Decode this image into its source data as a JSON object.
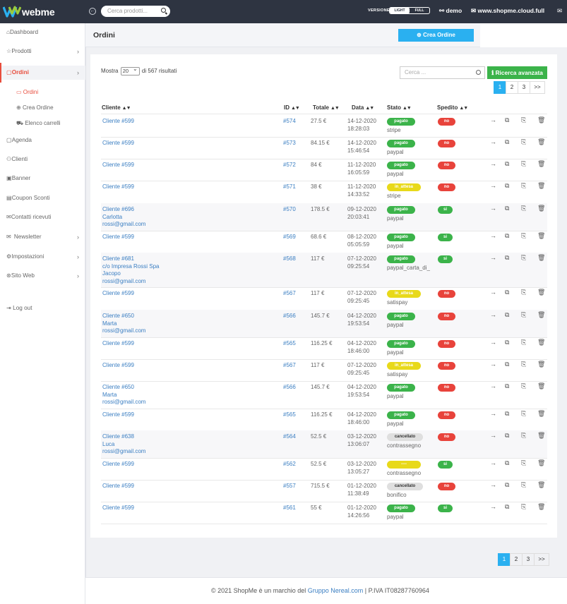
{
  "topbar": {
    "logo_text": "webme",
    "search_placeholder": "Cerca prodotti...",
    "versione_label": "VERSIONE",
    "toggle_light": "LIGHT",
    "toggle_full": "FULL",
    "user": "demo",
    "site": "www.shopme.cloud.full"
  },
  "sidebar": {
    "items": [
      {
        "label": "Dashboard"
      },
      {
        "label": "Prodotti"
      },
      {
        "label": "Ordini"
      },
      {
        "label": "Agenda"
      },
      {
        "label": "Clienti"
      },
      {
        "label": "Banner"
      },
      {
        "label": "Coupon Sconti"
      },
      {
        "label": "Contatti ricevuti"
      },
      {
        "label": "Newsletter"
      },
      {
        "label": "Impostazioni"
      },
      {
        "label": "Sito Web"
      },
      {
        "label": "Log out"
      }
    ],
    "sub": [
      {
        "label": "Ordini"
      },
      {
        "label": "Crea Ordine"
      },
      {
        "label": "Elenco carrelli"
      }
    ]
  },
  "page": {
    "title": "Ordini",
    "crea_button": "Crea Ordine",
    "mostra_label": "Mostra",
    "mostra_value": "20",
    "results_label": "di 567 risultati",
    "search_placeholder": "Cerca ...",
    "ricerca_button": "Ricerca avanzata",
    "pages": [
      "1",
      "2",
      "3",
      ">>"
    ]
  },
  "table": {
    "headers": [
      "Cliente",
      "ID",
      "Totale",
      "Data",
      "Stato",
      "Spedito"
    ],
    "rows": [
      {
        "cliente": [
          "Cliente #599"
        ],
        "id": "#574",
        "totale": "27.5 €",
        "date": "14-12-2020",
        "time": "18:28:03",
        "stato": "pagato",
        "pay": "stripe",
        "spedito": "no"
      },
      {
        "cliente": [
          "Cliente #599"
        ],
        "id": "#573",
        "totale": "84.15 €",
        "date": "14-12-2020",
        "time": "15:46:54",
        "stato": "pagato",
        "pay": "paypal",
        "spedito": "no"
      },
      {
        "cliente": [
          "Cliente #599"
        ],
        "id": "#572",
        "totale": "84 €",
        "date": "11-12-2020",
        "time": "16:05:59",
        "stato": "pagato",
        "pay": "paypal",
        "spedito": "no"
      },
      {
        "cliente": [
          "Cliente #599"
        ],
        "id": "#571",
        "totale": "38 €",
        "date": "11-12-2020",
        "time": "14:33:52",
        "stato": "in_attesa",
        "pay": "stripe",
        "spedito": "no"
      },
      {
        "cliente": [
          "Cliente #696",
          "Carlotta",
          "rossi@gmail.com"
        ],
        "id": "#570",
        "totale": "178.5 €",
        "date": "09-12-2020",
        "time": "20:03:41",
        "stato": "pagato",
        "pay": "paypal",
        "spedito": "si"
      },
      {
        "cliente": [
          "Cliente #599"
        ],
        "id": "#569",
        "totale": "68.6 €",
        "date": "08-12-2020",
        "time": "05:05:59",
        "stato": "pagato",
        "pay": "paypal",
        "spedito": "si"
      },
      {
        "cliente": [
          "Cliente #681",
          "c/o Impresa Rossi Spa",
          "Jacopo",
          "rossi@gmail.com"
        ],
        "id": "#568",
        "totale": "117 €",
        "date": "07-12-2020",
        "time": "09:25:54",
        "stato": "pagato",
        "pay": "paypal_carta_di_",
        "spedito": "si"
      },
      {
        "cliente": [
          "Cliente #599"
        ],
        "id": "#567",
        "totale": "117 €",
        "date": "07-12-2020",
        "time": "09:25:45",
        "stato": "in_attesa",
        "pay": "satispay",
        "spedito": "no"
      },
      {
        "cliente": [
          "Cliente #650",
          "Marta",
          "rossi@gmail.com"
        ],
        "id": "#566",
        "totale": "145.7 €",
        "date": "04-12-2020",
        "time": "19:53:54",
        "stato": "pagato",
        "pay": "paypal",
        "spedito": "no"
      },
      {
        "cliente": [
          "Cliente #599"
        ],
        "id": "#565",
        "totale": "116.25 €",
        "date": "04-12-2020",
        "time": "18:46:00",
        "stato": "pagato",
        "pay": "paypal",
        "spedito": "no"
      },
      {
        "cliente": [
          "Cliente #599"
        ],
        "id": "#567",
        "totale": "117 €",
        "date": "07-12-2020",
        "time": "09:25:45",
        "stato": "in_attesa",
        "pay": "satispay",
        "spedito": "no"
      },
      {
        "cliente": [
          "Cliente #650",
          "Marta",
          "rossi@gmail.com"
        ],
        "id": "#566",
        "totale": "145.7 €",
        "date": "04-12-2020",
        "time": "19:53:54",
        "stato": "pagato",
        "pay": "paypal",
        "spedito": "no"
      },
      {
        "cliente": [
          "Cliente #599"
        ],
        "id": "#565",
        "totale": "116.25 €",
        "date": "04-12-2020",
        "time": "18:46:00",
        "stato": "pagato",
        "pay": "paypal",
        "spedito": "no"
      },
      {
        "cliente": [
          "Cliente #638",
          "Luca",
          "rossi@gmail.com"
        ],
        "id": "#564",
        "totale": "52.5 €",
        "date": "03-12-2020",
        "time": "13:06:07",
        "stato": "cancellato",
        "pay": "contrassegno",
        "spedito": "no"
      },
      {
        "cliente": [
          "Cliente #599"
        ],
        "id": "#562",
        "totale": "52.5 €",
        "date": "03-12-2020",
        "time": "13:05:27",
        "stato": "----",
        "pay": "contrassegno",
        "spedito": "si"
      },
      {
        "cliente": [
          "Cliente #599"
        ],
        "id": "#557",
        "totale": "715.5 €",
        "date": "01-12-2020",
        "time": "11:38:49",
        "stato": "cancellato",
        "pay": "bonifico",
        "spedito": "no"
      },
      {
        "cliente": [
          "Cliente #599"
        ],
        "id": "#561",
        "totale": "55 €",
        "date": "01-12-2020",
        "time": "14:26:56",
        "stato": "pagato",
        "pay": "paypal",
        "spedito": "si"
      }
    ]
  },
  "footer": {
    "prefix": "© 2021 ShopMe è un marchio del ",
    "link": "Gruppo Nereal.com",
    "suffix": " | P.IVA IT08287760964"
  }
}
